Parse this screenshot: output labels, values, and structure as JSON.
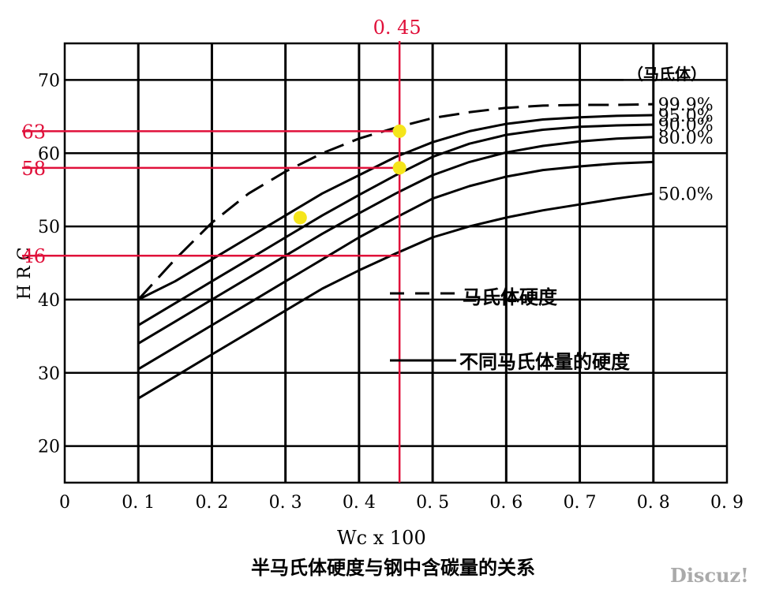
{
  "chart_data": {
    "type": "line",
    "title": "半马氏体硬度与钢中含碳量的关系",
    "xlabel": "Wc x 100",
    "ylabel": "H R C",
    "xlim": [
      0,
      0.9
    ],
    "ylim": [
      15,
      75
    ],
    "x_ticks": [
      0,
      0.1,
      0.2,
      0.3,
      0.4,
      0.5,
      0.6,
      0.7,
      0.8,
      0.9
    ],
    "x_tick_labels": [
      "0",
      "0. 1",
      "0. 2",
      "0. 3",
      "0. 4",
      "0. 5",
      "0. 6",
      "0. 7",
      "0. 8",
      "0. 9"
    ],
    "y_ticks": [
      20,
      30,
      40,
      50,
      60,
      70
    ],
    "y_tick_labels": [
      "20",
      "30",
      "40",
      "50",
      "60",
      "70"
    ],
    "grid": true,
    "series_header": "（马氏体）",
    "series": [
      {
        "name": "99.9%",
        "style": "dashed",
        "x": [
          0.1,
          0.15,
          0.2,
          0.25,
          0.3,
          0.35,
          0.4,
          0.45,
          0.5,
          0.55,
          0.6,
          0.65,
          0.7,
          0.75,
          0.8
        ],
        "y": [
          40,
          45.5,
          50.5,
          54.5,
          57.5,
          60,
          62,
          63.5,
          64.8,
          65.6,
          66.2,
          66.5,
          66.6,
          66.6,
          66.7
        ]
      },
      {
        "name": "95.0%",
        "style": "solid",
        "x": [
          0.1,
          0.15,
          0.2,
          0.25,
          0.3,
          0.35,
          0.4,
          0.45,
          0.5,
          0.55,
          0.6,
          0.65,
          0.7,
          0.75,
          0.8
        ],
        "y": [
          40,
          42.5,
          45.5,
          48.5,
          51.5,
          54.5,
          57,
          59.5,
          61.5,
          63,
          64,
          64.6,
          64.9,
          65.1,
          65.2
        ]
      },
      {
        "name": "90.0%",
        "style": "solid",
        "x": [
          0.1,
          0.15,
          0.2,
          0.25,
          0.3,
          0.35,
          0.4,
          0.45,
          0.5,
          0.55,
          0.6,
          0.65,
          0.7,
          0.75,
          0.8
        ],
        "y": [
          36.5,
          39.5,
          42.5,
          45.5,
          48.5,
          51.5,
          54.3,
          57,
          59.5,
          61.3,
          62.5,
          63.2,
          63.6,
          63.8,
          63.9
        ]
      },
      {
        "name": "80.0%",
        "style": "solid",
        "x": [
          0.1,
          0.15,
          0.2,
          0.25,
          0.3,
          0.35,
          0.4,
          0.45,
          0.5,
          0.55,
          0.6,
          0.65,
          0.7,
          0.75,
          0.8
        ],
        "y": [
          34,
          37,
          40,
          43,
          46,
          49,
          51.8,
          54.5,
          57,
          58.8,
          60.1,
          61,
          61.6,
          62,
          62.2
        ]
      },
      {
        "name": "",
        "style": "solid",
        "x": [
          0.1,
          0.15,
          0.2,
          0.25,
          0.3,
          0.35,
          0.4,
          0.45,
          0.5,
          0.55,
          0.6,
          0.65,
          0.7,
          0.75,
          0.8
        ],
        "y": [
          30.5,
          33.5,
          36.5,
          39.5,
          42.5,
          45.5,
          48.5,
          51.2,
          53.8,
          55.5,
          56.8,
          57.7,
          58.2,
          58.6,
          58.8
        ]
      },
      {
        "name": "50.0%",
        "style": "solid",
        "x": [
          0.1,
          0.15,
          0.2,
          0.25,
          0.3,
          0.35,
          0.4,
          0.45,
          0.5,
          0.55,
          0.6,
          0.65,
          0.7,
          0.75,
          0.8
        ],
        "y": [
          26.5,
          29.5,
          32.5,
          35.5,
          38.5,
          41.5,
          44,
          46.3,
          48.5,
          50,
          51.2,
          52.2,
          53,
          53.8,
          54.5
        ]
      }
    ],
    "legend": [
      {
        "style": "dashed",
        "label": "马氏体硬度"
      },
      {
        "style": "solid",
        "label": "不同马氏体量的硬度"
      }
    ],
    "marker_x": {
      "value": 0.455,
      "label": "0. 45",
      "color": "#e0103a"
    },
    "marker_y": [
      {
        "value": 63,
        "label": "63",
        "color": "#e0103a"
      },
      {
        "value": 58,
        "label": "58",
        "color": "#e0103a"
      },
      {
        "value": 46,
        "label": "46",
        "color": "#e0103a"
      }
    ],
    "highlight_points": [
      {
        "x": 0.455,
        "y": 63,
        "color": "#f5e51b"
      },
      {
        "x": 0.455,
        "y": 58,
        "color": "#f5e51b"
      },
      {
        "x": 0.32,
        "y": 51.2,
        "color": "#f5e51b"
      }
    ]
  },
  "watermark": "Discuz!"
}
